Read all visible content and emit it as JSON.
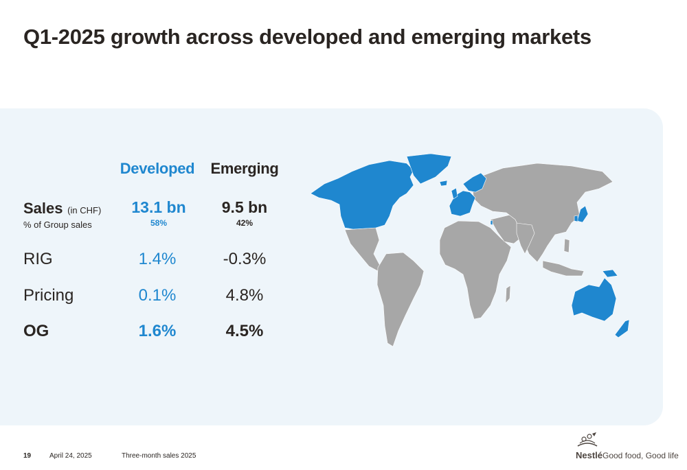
{
  "slide": {
    "title": "Q1-2025 growth across developed and emerging markets"
  },
  "table": {
    "col_developed": "Developed",
    "col_emerging": "Emerging",
    "sales_label": "Sales",
    "sales_unit": "(in CHF)",
    "share_label": "% of Group sales",
    "developed_sales": "13.1 bn",
    "developed_share": "58%",
    "emerging_sales": "9.5 bn",
    "emerging_share": "42%",
    "rig_label": "RIG",
    "developed_rig": "1.4%",
    "emerging_rig": "-0.3%",
    "pricing_label": "Pricing",
    "developed_pricing": "0.1%",
    "emerging_pricing": "4.8%",
    "og_label": "OG",
    "developed_og": "1.6%",
    "emerging_og": "4.5%"
  },
  "map": {
    "developed_color": "#1f87cf",
    "emerging_color": "#a7a7a7"
  },
  "footer": {
    "page_number": "19",
    "date": "April 24, 2025",
    "report": "Three-month sales 2025",
    "brand": "Nestlé",
    "tagline": "Good food, Good life"
  },
  "colors": {
    "accent_blue": "#1f87cf",
    "panel_background": "#eef5fa",
    "text_dark": "#2a2522"
  }
}
